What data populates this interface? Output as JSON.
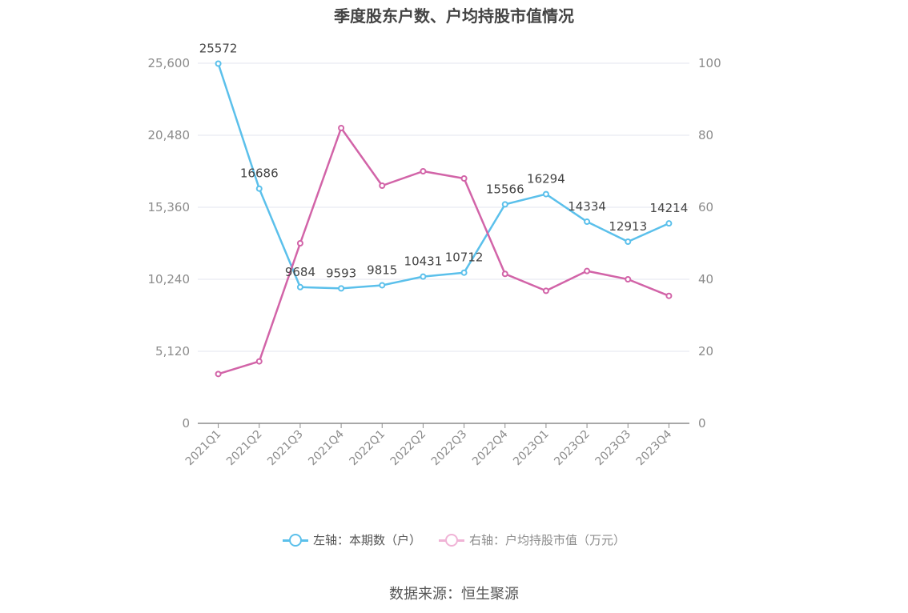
{
  "chart_data": {
    "type": "line",
    "title": "季度股东户数、户均持股市值情况",
    "categories": [
      "2021Q1",
      "2021Q2",
      "2021Q3",
      "2021Q4",
      "2022Q1",
      "2022Q2",
      "2022Q3",
      "2022Q4",
      "2023Q1",
      "2023Q2",
      "2023Q3",
      "2023Q4"
    ],
    "left_axis": {
      "min": 0,
      "max": 25600,
      "ticks": [
        "0",
        "5,120",
        "10,240",
        "15,360",
        "20,480",
        "25,600"
      ]
    },
    "right_axis": {
      "min": 0,
      "max": 100,
      "ticks": [
        "0",
        "20",
        "40",
        "60",
        "80",
        "100"
      ]
    },
    "grid": true,
    "series": [
      {
        "name": "左轴：本期数（户）",
        "axis": "left",
        "color": "#5bc0eb",
        "values": [
          25572,
          16686,
          9684,
          9593,
          9815,
          10431,
          10712,
          15566,
          16294,
          14334,
          12913,
          14214
        ],
        "labels": [
          "25572",
          "16686",
          "9684",
          "9593",
          "9815",
          "10431",
          "10712",
          "15566",
          "16294",
          "14334",
          "12913",
          "14214"
        ]
      },
      {
        "name": "右轴：户均持股市值（万元）",
        "axis": "right",
        "color": "#d264a8",
        "values": [
          13.7,
          17.2,
          50.0,
          82.0,
          66.0,
          70.0,
          68.0,
          41.5,
          36.8,
          42.3,
          40.0,
          35.4
        ]
      }
    ],
    "legend_position": "bottom"
  },
  "source": "数据来源：恒生聚源"
}
